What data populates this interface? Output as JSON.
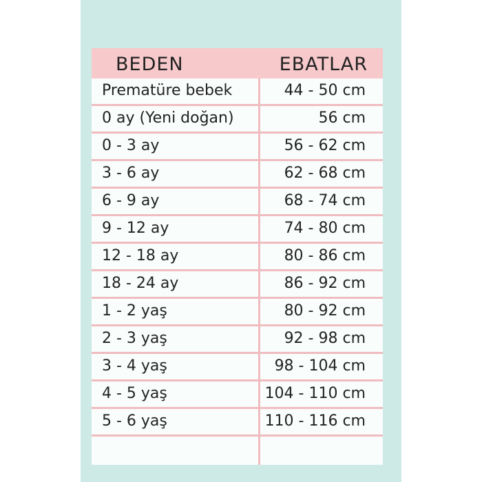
{
  "table": {
    "header": [
      "BEDEN",
      "EBATLAR"
    ],
    "rows": [
      [
        "Prematüre bebek",
        "44 - 50 cm"
      ],
      [
        "0 ay (Yeni doğan)",
        "56 cm"
      ],
      [
        "0 - 3 ay",
        "56 - 62 cm"
      ],
      [
        "3 - 6 ay",
        "62 - 68 cm"
      ],
      [
        "6 - 9 ay",
        "68 - 74 cm"
      ],
      [
        "9 - 12 ay",
        "74 - 80 cm"
      ],
      [
        "12 - 18 ay",
        "80 - 86 cm"
      ],
      [
        "18 - 24 ay",
        "86 - 92 cm"
      ],
      [
        "1 - 2 yaş",
        "80 - 92 cm"
      ],
      [
        "2 - 3 yaş",
        "92 - 98 cm"
      ],
      [
        "3 - 4 yaş",
        "98 - 104 cm"
      ],
      [
        "4 - 5 yaş",
        "104 - 110 cm"
      ],
      [
        "5 - 6 yaş",
        "110 - 116 cm"
      ]
    ]
  }
}
